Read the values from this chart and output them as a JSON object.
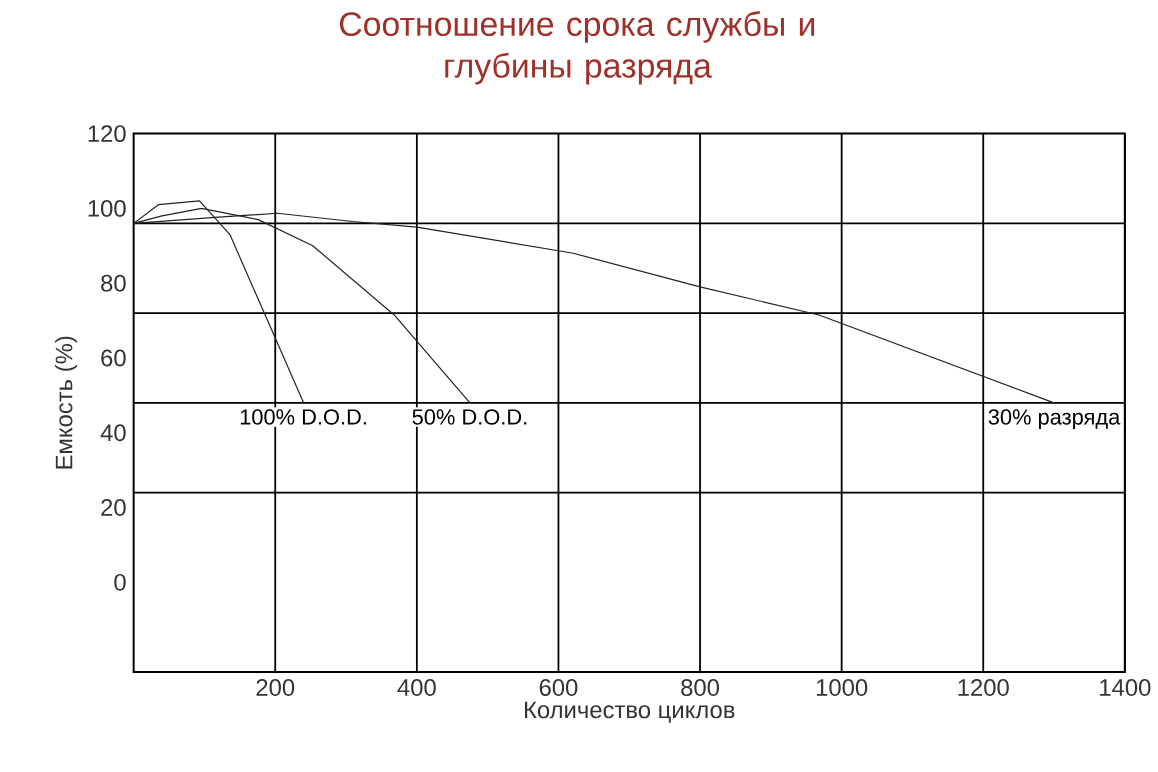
{
  "chart_data": {
    "type": "line",
    "title": "Соотношение срока службы и\nглубины разряда",
    "xlabel": "Количество циклов",
    "ylabel": "Емкость (%)",
    "xlim": [
      0,
      1400
    ],
    "xticks": [
      200,
      400,
      600,
      800,
      1000,
      1200,
      1400
    ],
    "ylim": [
      -24,
      120
    ],
    "yticks": [
      120,
      100,
      80,
      60,
      40,
      20,
      0,
      {
        "value": 96,
        "label": null
      },
      {
        "value": 72,
        "label": null
      },
      {
        "value": 48,
        "label": null
      },
      {
        "value": 24,
        "label": null
      }
    ],
    "grid": true,
    "marker": "none",
    "line_style": "solid",
    "series": [
      {
        "name": "100% D.O.D.",
        "color": "#222222",
        "x": [
          0,
          35,
          93,
          136,
          240
        ],
        "values": [
          96,
          101,
          102,
          93,
          48
        ]
      },
      {
        "name": "50% D.O.D.",
        "color": "#222222",
        "x": [
          0,
          40,
          96,
          176,
          253,
          368,
          475
        ],
        "values": [
          96,
          98,
          100,
          97,
          90,
          71.5,
          48
        ]
      },
      {
        "name": "30% разряда",
        "color": "#222222",
        "x": [
          0,
          115,
          203,
          309,
          400,
          621,
          800,
          968,
          1300
        ],
        "values": [
          96,
          97.6,
          98.7,
          96.5,
          95,
          88,
          79,
          71.5,
          48
        ]
      }
    ]
  }
}
